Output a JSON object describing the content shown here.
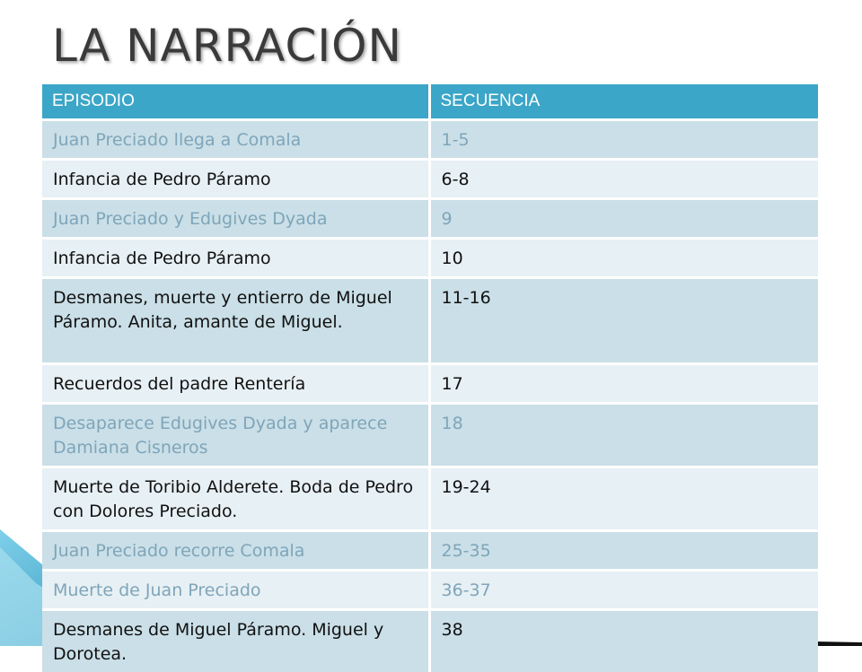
{
  "title": "LA NARRACIÓN",
  "table": {
    "headers": [
      "EPISODIO",
      "SECUENCIA"
    ],
    "rows": [
      {
        "episodio": "Juan Preciado llega a Comala",
        "secuencia": "1-5"
      },
      {
        "episodio": "Infancia de Pedro Páramo",
        "secuencia": "6-8"
      },
      {
        "episodio": "Juan Preciado y Edugives Dyada",
        "secuencia": "9"
      },
      {
        "episodio": "Infancia de Pedro Páramo",
        "secuencia": "10"
      },
      {
        "episodio": "Desmanes, muerte y entierro de Miguel Páramo. Anita, amante de Miguel.",
        "secuencia": "11-16"
      },
      {
        "episodio": "Recuerdos del padre Rentería",
        "secuencia": "17"
      },
      {
        "episodio": "Desaparece Edugives Dyada y aparece Damiana Cisneros",
        "secuencia": "18"
      },
      {
        "episodio": "Muerte de Toribio Alderete. Boda de Pedro con Dolores Preciado.",
        "secuencia": "19-24"
      },
      {
        "episodio": "Juan Preciado recorre Comala",
        "secuencia": "25-35"
      },
      {
        "episodio": "Muerte de Juan Preciado",
        "secuencia": "36-37"
      },
      {
        "episodio": "Desmanes de Miguel Páramo. Miguel y Dorotea.",
        "secuencia": "38"
      }
    ]
  },
  "colors": {
    "header_bg": "#3ba6c8",
    "row_dark": "#cadfe7",
    "row_light": "#e7f0f4",
    "muted_text": "#7fa5ba",
    "title_text": "#3a3a3a",
    "accent_teal": "#2fa3c7"
  }
}
